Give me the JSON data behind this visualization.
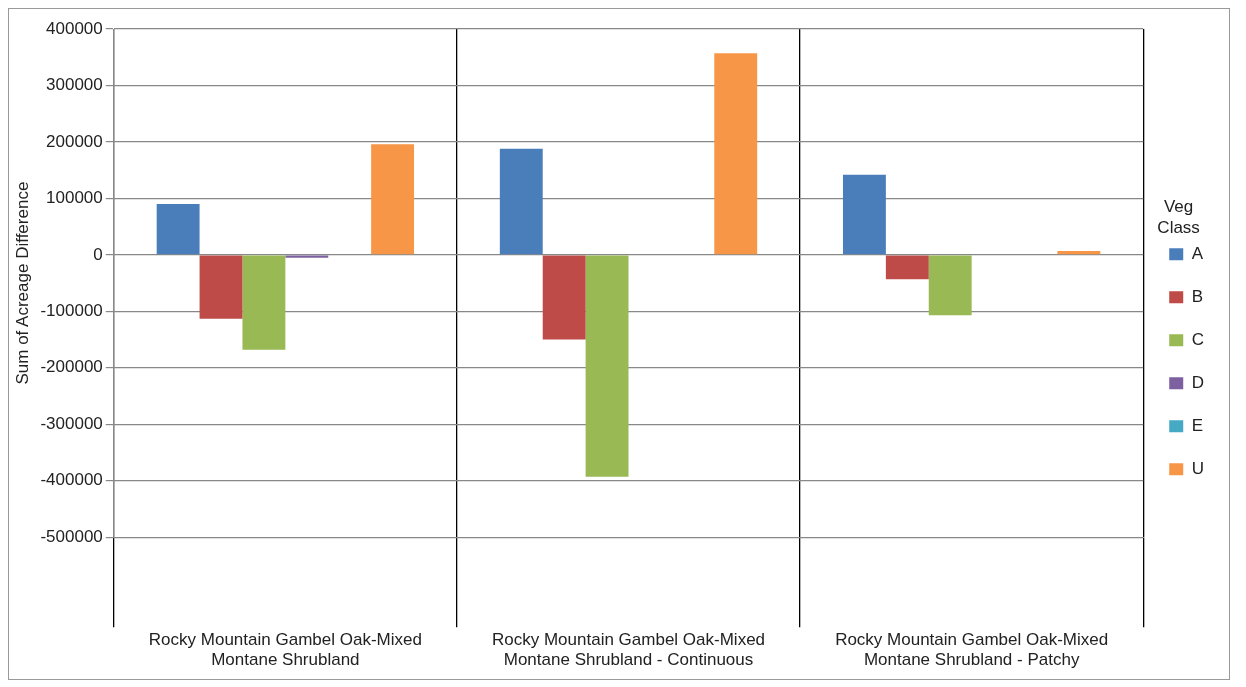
{
  "chart_data": {
    "type": "bar",
    "ylabel": "Sum of Acreage Difference",
    "legend_title": "Veg Class",
    "categories": [
      "Rocky Mountain Gambel Oak-Mixed Montane Shrubland",
      "Rocky Mountain Gambel Oak-Mixed Montane Shrubland - Continuous",
      "Rocky Mountain Gambel Oak-Mixed Montane Shrubland - Patchy"
    ],
    "series": [
      {
        "name": "A",
        "color": "#4a7ebb",
        "values": [
          90000,
          188000,
          142000
        ]
      },
      {
        "name": "B",
        "color": "#be4b48",
        "values": [
          -113000,
          -150000,
          -43000
        ]
      },
      {
        "name": "C",
        "color": "#98b954",
        "values": [
          -168000,
          -393000,
          -107000
        ]
      },
      {
        "name": "D",
        "color": "#7d60a0",
        "values": [
          -5000,
          null,
          null
        ]
      },
      {
        "name": "E",
        "color": "#46aac5",
        "values": [
          null,
          null,
          null
        ]
      },
      {
        "name": "U",
        "color": "#f79646",
        "values": [
          196000,
          357000,
          7000
        ]
      }
    ],
    "ylim": [
      -500000,
      400000
    ],
    "yticks": [
      -500000,
      -400000,
      -300000,
      -200000,
      -100000,
      0,
      100000,
      200000,
      300000,
      400000
    ],
    "grid": true,
    "legend": "right"
  }
}
